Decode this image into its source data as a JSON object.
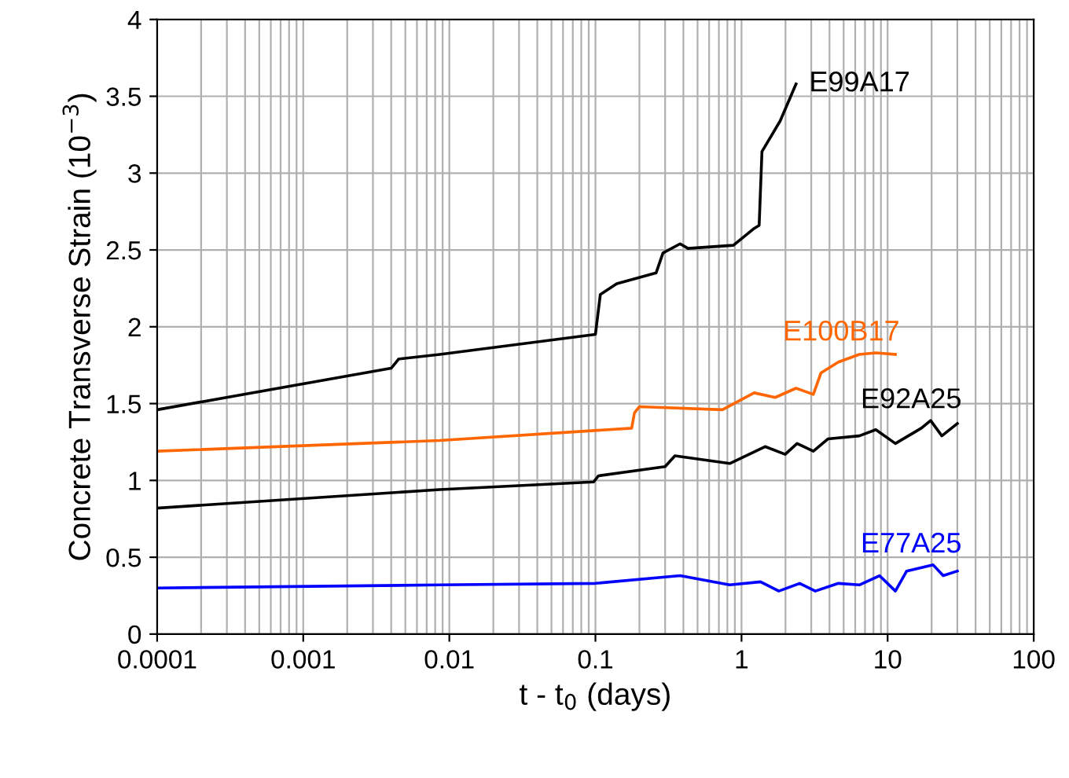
{
  "chart_data": {
    "type": "line",
    "xlabel": "t - t$_{0}$ (days)",
    "ylabel": "Concrete Transverse Strain (10$^{−3}$)",
    "log": "x",
    "grid": true,
    "legend": false,
    "marker": "none",
    "line_style": "solid",
    "xlim": [
      0.0001,
      100
    ],
    "xticks": [
      0.0001,
      0.001,
      0.01,
      0.1,
      1,
      10,
      100
    ],
    "ylim": [
      0,
      4
    ],
    "yticks": [
      0,
      0.5,
      1,
      1.5,
      2,
      2.5,
      3,
      3.5,
      4
    ],
    "series": [
      {
        "name": "E99A17",
        "color": "#000000",
        "x": [
          0.0001,
          0.004,
          0.0045,
          0.0086,
          0.1,
          0.108,
          0.14,
          0.26,
          0.29,
          0.38,
          0.43,
          0.88,
          1.22,
          1.32,
          1.38,
          1.84,
          2.36
        ],
        "values": [
          1.46,
          1.73,
          1.79,
          1.82,
          1.95,
          2.21,
          2.28,
          2.35,
          2.48,
          2.54,
          2.51,
          2.53,
          2.64,
          2.66,
          3.14,
          3.34,
          3.58
        ]
      },
      {
        "name": "E100B17",
        "color": "#ff6600",
        "x": [
          0.0001,
          0.0086,
          0.177,
          0.185,
          0.2,
          0.74,
          1.22,
          1.7,
          2.36,
          3.1,
          3.5,
          4.6,
          6.4,
          8.3,
          11.3
        ],
        "values": [
          1.19,
          1.26,
          1.34,
          1.44,
          1.48,
          1.46,
          1.57,
          1.54,
          1.6,
          1.56,
          1.7,
          1.77,
          1.82,
          1.83,
          1.82
        ]
      },
      {
        "name": "E92A25",
        "color": "#000000",
        "x": [
          0.0001,
          0.0086,
          0.097,
          0.105,
          0.3,
          0.35,
          0.83,
          1.45,
          1.99,
          2.4,
          3.1,
          3.9,
          6.4,
          8.3,
          11.3,
          17,
          19.7,
          23.5,
          30
        ],
        "values": [
          0.82,
          0.94,
          0.99,
          1.03,
          1.09,
          1.16,
          1.11,
          1.22,
          1.17,
          1.24,
          1.19,
          1.27,
          1.29,
          1.33,
          1.24,
          1.34,
          1.39,
          1.29,
          1.37
        ]
      },
      {
        "name": "E77A25",
        "color": "#0000ff",
        "x": [
          0.0001,
          0.0086,
          0.1,
          0.38,
          0.83,
          1.35,
          1.8,
          2.5,
          3.2,
          4.6,
          6.4,
          8.8,
          11.3,
          13.5,
          20.5,
          24,
          30
        ],
        "values": [
          0.3,
          0.32,
          0.33,
          0.38,
          0.32,
          0.34,
          0.28,
          0.33,
          0.28,
          0.33,
          0.32,
          0.38,
          0.28,
          0.41,
          0.45,
          0.38,
          0.41
        ]
      }
    ]
  }
}
